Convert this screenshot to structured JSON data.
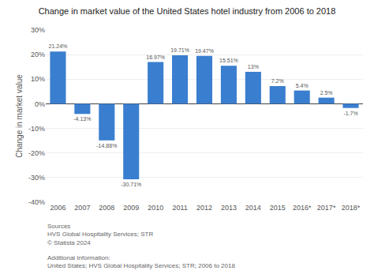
{
  "chart_data": {
    "type": "bar",
    "title": "Change in market value of the United States hotel industry from 2006 to 2018",
    "categories": [
      "2006",
      "2007",
      "2008",
      "2009",
      "2010",
      "2011",
      "2012",
      "2013",
      "2014",
      "2015",
      "2016*",
      "2017*",
      "2018*"
    ],
    "values": [
      21.24,
      -4.13,
      -14.88,
      -30.71,
      16.97,
      19.71,
      19.47,
      15.51,
      13.0,
      7.2,
      5.4,
      2.5,
      -1.7
    ],
    "value_labels": [
      "21.24%",
      "-4.13%",
      "-14.88%",
      "-30.71%",
      "16.97%",
      "19.71%",
      "19.47%",
      "15.51%",
      "13%",
      "7.2%",
      "5.4%",
      "2.5%",
      "-1.7%"
    ],
    "data_labels": true,
    "color": "#3a7ecf",
    "ylabel": "Change in market value",
    "ylim": [
      -40,
      30
    ],
    "yticks": [
      {
        "value": -40,
        "label": "-40%"
      },
      {
        "value": -30,
        "label": "-30%"
      },
      {
        "value": -20,
        "label": "-20%"
      },
      {
        "value": -10,
        "label": "-10%"
      },
      {
        "value": 0,
        "label": "0%"
      },
      {
        "value": 10,
        "label": "10%"
      },
      {
        "value": 20,
        "label": "20%"
      },
      {
        "value": 30,
        "label": "30%"
      }
    ],
    "grid": true,
    "annotations": [
      "Sources\nHVS Global Hospitality Services; STR\n© Statista 2024",
      "Additional Information:\nUnited States; HVS Global Hospitality Services; STR; 2006 to 2018"
    ]
  }
}
